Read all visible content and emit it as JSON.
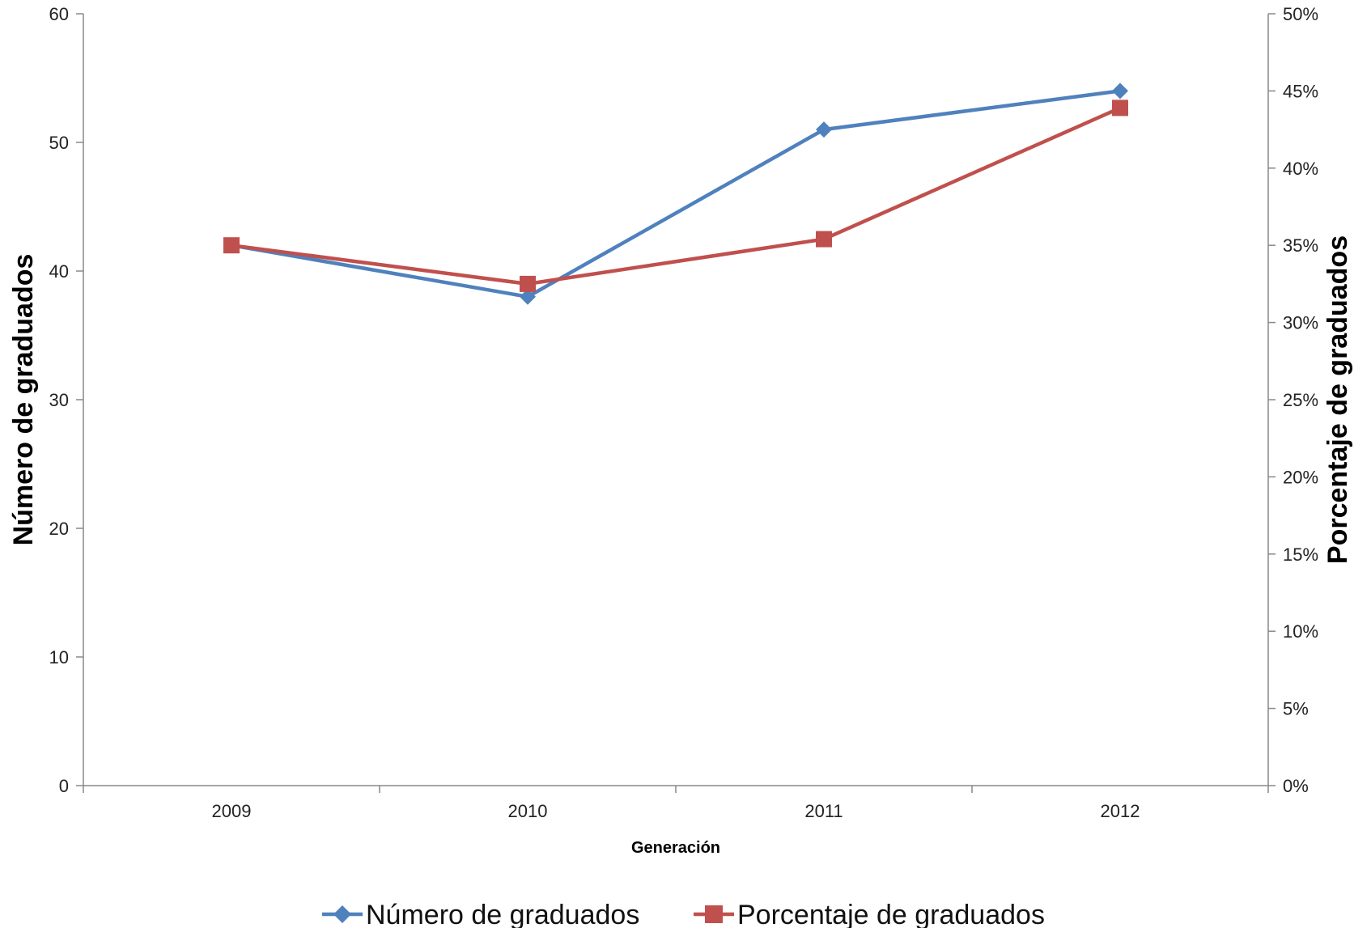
{
  "chart_data": {
    "type": "line",
    "categories": [
      "2009",
      "2010",
      "2011",
      "2012"
    ],
    "xlabel": "Generación",
    "ylabel_left": "Número de graduados",
    "ylabel_right": "Porcentaje de graduados",
    "ylim_left": [
      0,
      60
    ],
    "yticks_left": [
      "0",
      "10",
      "20",
      "30",
      "40",
      "50",
      "60"
    ],
    "ylim_right": [
      0,
      50
    ],
    "yticks_right": [
      "0%",
      "5%",
      "10%",
      "15%",
      "20%",
      "25%",
      "30%",
      "35%",
      "40%",
      "45%",
      "50%"
    ],
    "grid": false,
    "legend_position": "bottom",
    "series": [
      {
        "name": "Número de graduados",
        "axis": "left",
        "marker": "diamond",
        "color": "#4F81BD",
        "values": [
          42,
          38,
          51,
          54
        ]
      },
      {
        "name": "Porcentaje de graduados",
        "axis": "right",
        "marker": "square",
        "color": "#C0504D",
        "values": [
          35,
          32.5,
          35.4,
          43.9
        ]
      }
    ]
  }
}
